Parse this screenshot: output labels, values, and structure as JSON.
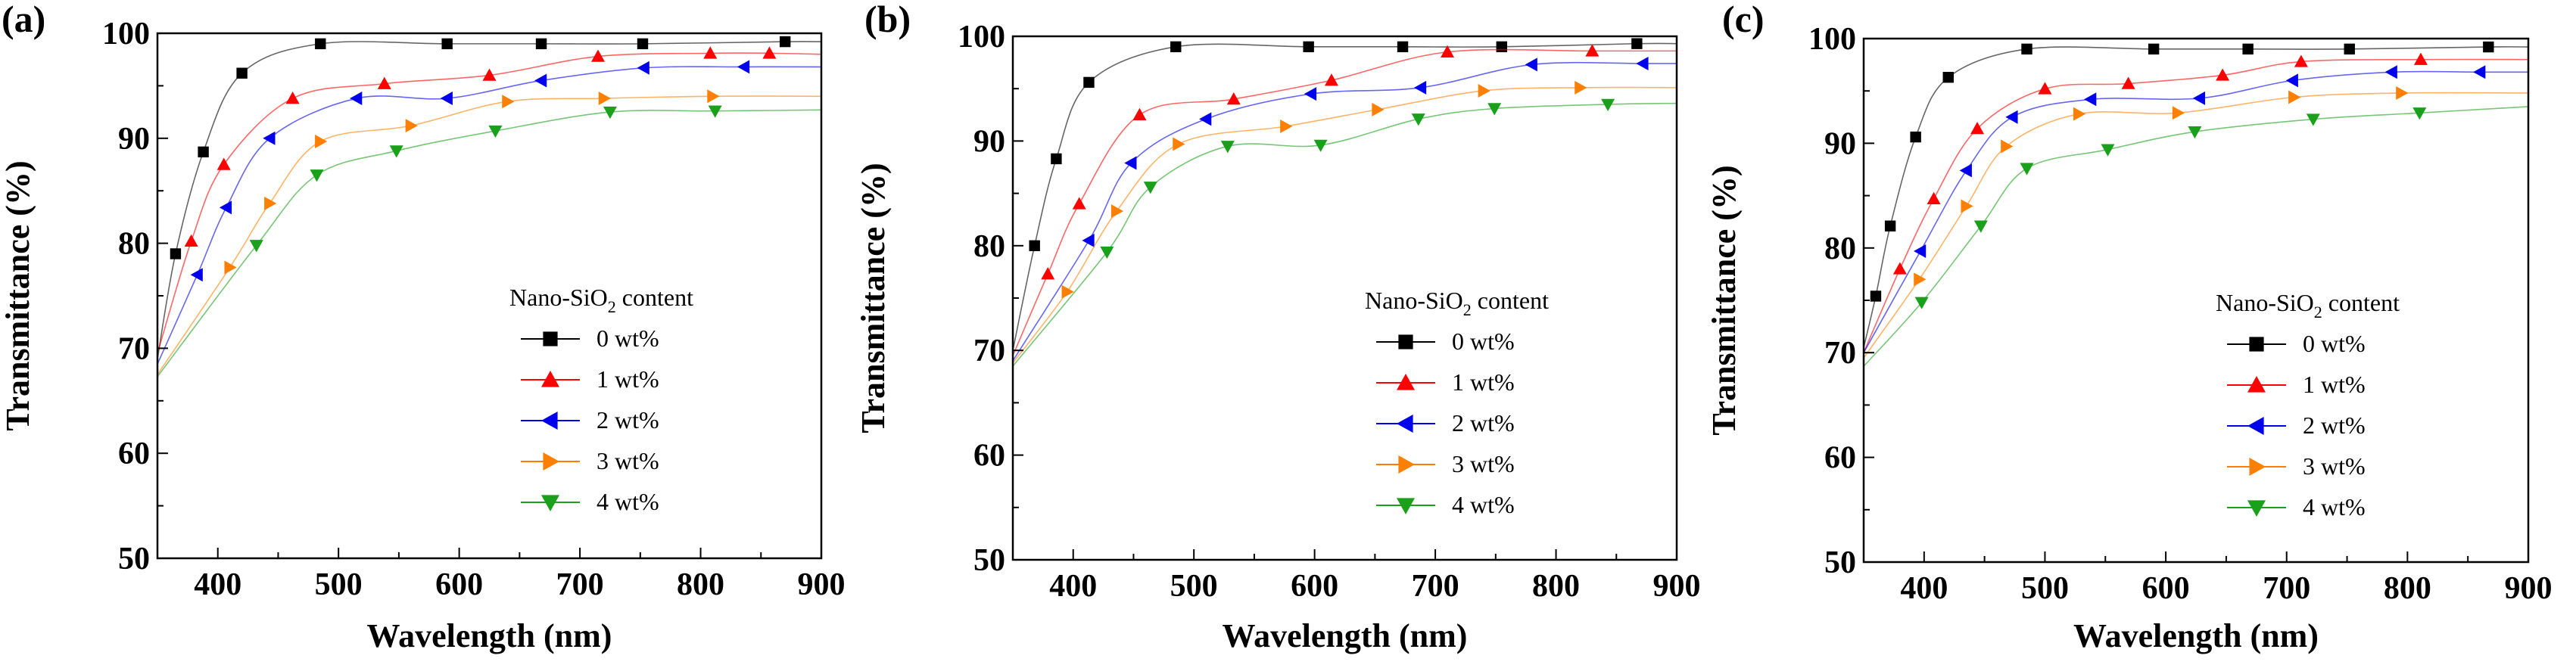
{
  "chart_data": [
    {
      "type": "line",
      "panel_label": "(a)",
      "xlabel": "Wavelength  (nm)",
      "ylabel": "Transmittance  (%)",
      "xlim": [
        350,
        900
      ],
      "ylim": [
        50,
        100
      ],
      "xticks": [
        "400",
        "500",
        "600",
        "700",
        "800",
        "900"
      ],
      "yticks": [
        "50",
        "60",
        "70",
        "80",
        "90",
        "100"
      ],
      "legend": {
        "title_main": "Nano-SiO",
        "title_sub": "2",
        "title_rest": " content",
        "placement": "center-right"
      },
      "series": [
        {
          "name": "0 wt%",
          "color": "#000000",
          "marker": "square",
          "curve_start": [
            350,
            69
          ],
          "curve_end": [
            900,
            99.2
          ],
          "x": [
            365,
            388,
            420,
            485,
            590,
            668,
            752,
            870
          ],
          "y": [
            79,
            88.7,
            96.2,
            99,
            99,
            99,
            99,
            99.2
          ]
        },
        {
          "name": "1 wt%",
          "color": "#ff0000",
          "marker": "triangle-up",
          "curve_start": [
            350,
            69.5
          ],
          "curve_end": [
            900,
            98
          ],
          "x": [
            378,
            405,
            462,
            538,
            625,
            715,
            808,
            857
          ],
          "y": [
            80.2,
            87.5,
            93.8,
            95.2,
            96,
            97.8,
            98.1,
            98.1
          ]
        },
        {
          "name": "2 wt%",
          "color": "#0000ee",
          "marker": "triangle-left",
          "curve_start": [
            350,
            68.5
          ],
          "curve_end": [
            900,
            96.8
          ],
          "x": [
            383,
            407,
            443,
            515,
            590,
            668,
            753,
            836
          ],
          "y": [
            77,
            83.4,
            90,
            93.8,
            93.8,
            95.5,
            96.7,
            96.8
          ]
        },
        {
          "name": "3 wt%",
          "color": "#ff8000",
          "marker": "triangle-right",
          "curve_start": [
            350,
            67.5
          ],
          "curve_end": [
            900,
            94
          ],
          "x": [
            410,
            443,
            485,
            560,
            640,
            720,
            810
          ],
          "y": [
            77.7,
            83.8,
            89.7,
            91.2,
            93.5,
            93.8,
            94
          ]
        },
        {
          "name": "4 wt%",
          "color": "#1aa01a",
          "marker": "triangle-down",
          "curve_start": [
            350,
            67.3
          ],
          "curve_end": [
            900,
            92.7
          ],
          "x": [
            432,
            482,
            548,
            630,
            725,
            812
          ],
          "y": [
            79.8,
            86.5,
            88.8,
            90.7,
            92.5,
            92.6
          ]
        }
      ]
    },
    {
      "type": "line",
      "panel_label": "(b)",
      "xlabel": "Wavelength  (nm)",
      "ylabel": "Transmittance  (%)",
      "xlim": [
        350,
        900
      ],
      "ylim": [
        50,
        100
      ],
      "xticks": [
        "400",
        "500",
        "600",
        "700",
        "800",
        "900"
      ],
      "yticks": [
        "50",
        "60",
        "70",
        "80",
        "90",
        "100"
      ],
      "legend": {
        "title_main": "Nano-SiO",
        "title_sub": "2",
        "title_rest": " content",
        "placement": "center-right"
      },
      "series": [
        {
          "name": "0 wt%",
          "color": "#000000",
          "marker": "square",
          "curve_start": [
            350,
            70
          ],
          "curve_end": [
            900,
            99.3
          ],
          "x": [
            368,
            386,
            413,
            485,
            595,
            673,
            755,
            867
          ],
          "y": [
            80,
            88.3,
            95.6,
            99,
            99,
            99,
            99,
            99.3
          ]
        },
        {
          "name": "1 wt%",
          "color": "#ff0000",
          "marker": "triangle-up",
          "curve_start": [
            350,
            69.5
          ],
          "curve_end": [
            900,
            98.6
          ],
          "x": [
            379,
            405,
            455,
            533,
            614,
            710,
            830
          ],
          "y": [
            77.3,
            84,
            92.5,
            94,
            95.8,
            98.5,
            98.6
          ]
        },
        {
          "name": "2 wt%",
          "color": "#0000ee",
          "marker": "triangle-left",
          "curve_start": [
            350,
            69
          ],
          "curve_end": [
            900,
            97.4
          ],
          "x": [
            413,
            448,
            510,
            597,
            688,
            780,
            872
          ],
          "y": [
            80.5,
            87.9,
            92.1,
            94.5,
            95.1,
            97.3,
            97.4
          ]
        },
        {
          "name": "3 wt%",
          "color": "#ff8000",
          "marker": "triangle-right",
          "curve_start": [
            350,
            68.8
          ],
          "curve_end": [
            900,
            95.1
          ],
          "x": [
            395,
            436,
            487,
            576,
            652,
            740,
            820
          ],
          "y": [
            75.6,
            83.3,
            89.7,
            91.4,
            93,
            94.8,
            95.1
          ]
        },
        {
          "name": "4 wt%",
          "color": "#1aa01a",
          "marker": "triangle-down",
          "curve_start": [
            350,
            68.5
          ],
          "curve_end": [
            900,
            93.6
          ],
          "x": [
            428,
            464,
            528,
            605,
            686,
            749,
            843
          ],
          "y": [
            79.4,
            85.6,
            89.5,
            89.6,
            92.1,
            93.1,
            93.5
          ]
        }
      ]
    },
    {
      "type": "line",
      "panel_label": "(c)",
      "xlabel": "Wavelength  (nm)",
      "ylabel": "Transmittance  (%)",
      "xlim": [
        350,
        900
      ],
      "ylim": [
        50,
        100
      ],
      "xticks": [
        "400",
        "500",
        "600",
        "700",
        "800",
        "900"
      ],
      "yticks": [
        "50",
        "60",
        "70",
        "80",
        "90",
        "100"
      ],
      "legend": {
        "title_main": "Nano-SiO",
        "title_sub": "2",
        "title_rest": " content",
        "placement": "center-right"
      },
      "series": [
        {
          "name": "0 wt%",
          "color": "#000000",
          "marker": "square",
          "curve_start": [
            350,
            70.5
          ],
          "curve_end": [
            900,
            99.2
          ],
          "x": [
            360,
            372,
            393,
            420,
            485,
            590,
            668,
            752,
            867
          ],
          "y": [
            75.4,
            82.1,
            90.6,
            96.3,
            99,
            99,
            99,
            99,
            99.2
          ]
        },
        {
          "name": "1 wt%",
          "color": "#ff0000",
          "marker": "triangle-up",
          "curve_start": [
            350,
            70
          ],
          "curve_end": [
            900,
            98
          ],
          "x": [
            380,
            408,
            444,
            500,
            569,
            647,
            712,
            811
          ],
          "y": [
            78,
            84.7,
            91.4,
            95.2,
            95.7,
            96.5,
            97.8,
            98
          ]
        },
        {
          "name": "2 wt%",
          "color": "#0000ee",
          "marker": "triangle-left",
          "curve_start": [
            350,
            70
          ],
          "curve_end": [
            900,
            96.8
          ],
          "x": [
            397,
            435,
            473,
            538,
            628,
            705,
            787,
            860
          ],
          "y": [
            79.7,
            87.4,
            92.5,
            94.2,
            94.3,
            96,
            96.8,
            96.8
          ]
        },
        {
          "name": "3 wt%",
          "color": "#ff8000",
          "marker": "triangle-right",
          "curve_start": [
            350,
            69.5
          ],
          "curve_end": [
            900,
            94.8
          ],
          "x": [
            396,
            435,
            468,
            528,
            610,
            706,
            795
          ],
          "y": [
            77,
            84,
            89.7,
            92.8,
            92.9,
            94.4,
            94.8
          ]
        },
        {
          "name": "4 wt%",
          "color": "#1aa01a",
          "marker": "triangle-down",
          "curve_start": [
            350,
            68.7
          ],
          "curve_end": [
            900,
            93.5
          ],
          "x": [
            398,
            447,
            485,
            552,
            624,
            722,
            810
          ],
          "y": [
            74.8,
            82.1,
            87.6,
            89.4,
            91.1,
            92.3,
            92.9
          ]
        }
      ]
    }
  ]
}
